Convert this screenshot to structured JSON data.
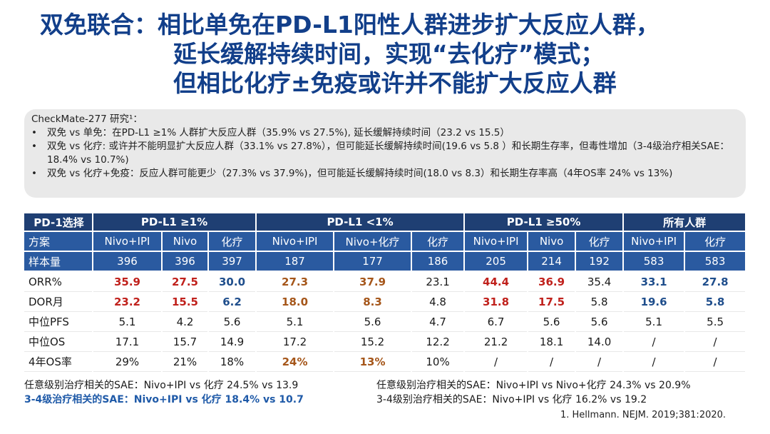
{
  "title": {
    "line1": "双免联合：相比单免在PD-L1阳性人群进步扩大反应人群，",
    "line2": "延长缓解持续时间，实现“去化疗”模式；",
    "line3": "但相比化疗±免疫或许并不能扩大反应人群"
  },
  "summary": {
    "heading": "CheckMate-277 研究¹：",
    "bullets": [
      "双免 vs 单免：在PD-L1 ≥1% 人群扩大反应人群（35.9% vs 27.5%), 延长缓解持续时间（23.2 vs 15.5）",
      "双免 vs 化疗: 或许并不能明显扩大反应人群（33.1% vs 27.8%），但可能延长缓解持续时间(19.6 vs 5.8 ）和长期生存率，但毒性增加（3-4级治疗相关SAE：18.4% vs 10.7%)",
      "双免 vs 化疗+免疫：反应人群可能更少（27.3% vs 37.9%)，但可能延长缓解持续时间(18.0 vs 8.3）和长期生存率高（4年OS率 24% vs 13%)"
    ]
  },
  "table": {
    "corner": "PD-1选择",
    "groups": [
      "PD-L1 ≥1%",
      "PD-L1  <1%",
      "PD-L1 ≥50%",
      "所有人群"
    ],
    "scheme_label": "方案",
    "schemes": [
      "Nivo+IPI",
      "Nivo",
      "化疗",
      "Nivo+IPI",
      "Nivo+化疗",
      "化疗",
      "Nivo+IPI",
      "Nivo",
      "化疗",
      "Nivo+IPI",
      "化疗"
    ],
    "sample_label": "样本量",
    "samples": [
      "396",
      "396",
      "397",
      "187",
      "177",
      "186",
      "205",
      "214",
      "192",
      "583",
      "583"
    ],
    "rows": [
      {
        "label": "ORR%",
        "values": [
          "35.9",
          "27.5",
          "30.0",
          "27.3",
          "37.9",
          "23.1",
          "44.4",
          "36.9",
          "35.4",
          "33.1",
          "27.8"
        ]
      },
      {
        "label": "DOR月",
        "values": [
          "23.2",
          "15.5",
          "6.2",
          "18.0",
          "8.3",
          "4.8",
          "31.8",
          "17.5",
          "5.8",
          "19.6",
          "5.8"
        ]
      },
      {
        "label": "中位PFS",
        "values": [
          "5.1",
          "4.2",
          "5.6",
          "5.1",
          "5.6",
          "4.7",
          "6.7",
          "5.6",
          "5.6",
          "5.1",
          "5.5"
        ]
      },
      {
        "label": "中位OS",
        "values": [
          "17.1",
          "15.7",
          "14.9",
          "17.2",
          "15.2",
          "12.2",
          "21.2",
          "18.1",
          "14.0",
          "/",
          "/"
        ]
      },
      {
        "label": "4年OS率",
        "values": [
          "29%",
          "21%",
          "18%",
          "24%",
          "13%",
          "10%",
          "/",
          "/",
          "/",
          "/",
          "/"
        ]
      }
    ]
  },
  "footnotes": {
    "left1": "任意级别治疗相关的SAE：Nivo+IPI vs  化疗 24.5% vs 13.9",
    "left2": "3-4级治疗相关的SAE：Nivo+IPI vs  化疗 18.4% vs 10.7",
    "right1": "任意级别治疗相关的SAE：Nivo+IPI vs  Nivo+化疗 24.3% vs 20.9%",
    "right2": "3-4级别治疗相关的SAE：Nivo+IPI vs  化疗 16.2% vs 19.2"
  },
  "reference": "1. Hellmann. NEJM. 2019;381:2020."
}
